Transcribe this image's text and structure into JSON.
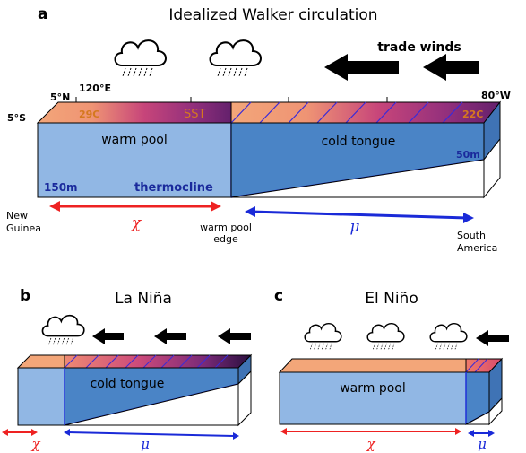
{
  "panel_a": {
    "letter": "a",
    "title": "Idealized Walker circulation",
    "trade_winds": "trade winds",
    "lat_north": "5°N",
    "lat_south": "5°S",
    "lon_west": "120°E",
    "lon_east": "80°W",
    "sst_west": "29C",
    "sst_label": "SST",
    "sst_east": "22C",
    "warm_pool": "warm pool",
    "cold_tongue": "cold tongue",
    "depth_west": "150m",
    "depth_east": "50m",
    "thermocline": "thermocline",
    "left_place_1": "New",
    "left_place_2": "Guinea",
    "mid_place_1": "warm pool",
    "mid_place_2": "edge",
    "right_place_1": "South",
    "right_place_2": "America",
    "chi": "χ",
    "mu": "μ"
  },
  "panel_b": {
    "letter": "b",
    "title": "La Niña",
    "cold_tongue": "cold tongue",
    "chi": "χ",
    "mu": "μ"
  },
  "panel_c": {
    "letter": "c",
    "title": "El Niño",
    "warm_pool": "warm pool",
    "chi": "χ",
    "mu": "μ"
  },
  "colors": {
    "warm_pool": "#91b7e4",
    "cold_tongue": "#4a84c6",
    "sst_warm": "#f5a87a",
    "sst_cold": "#5a1a6e",
    "chi_arrow": "#ee2222",
    "mu_arrow": "#1a2ad8"
  }
}
